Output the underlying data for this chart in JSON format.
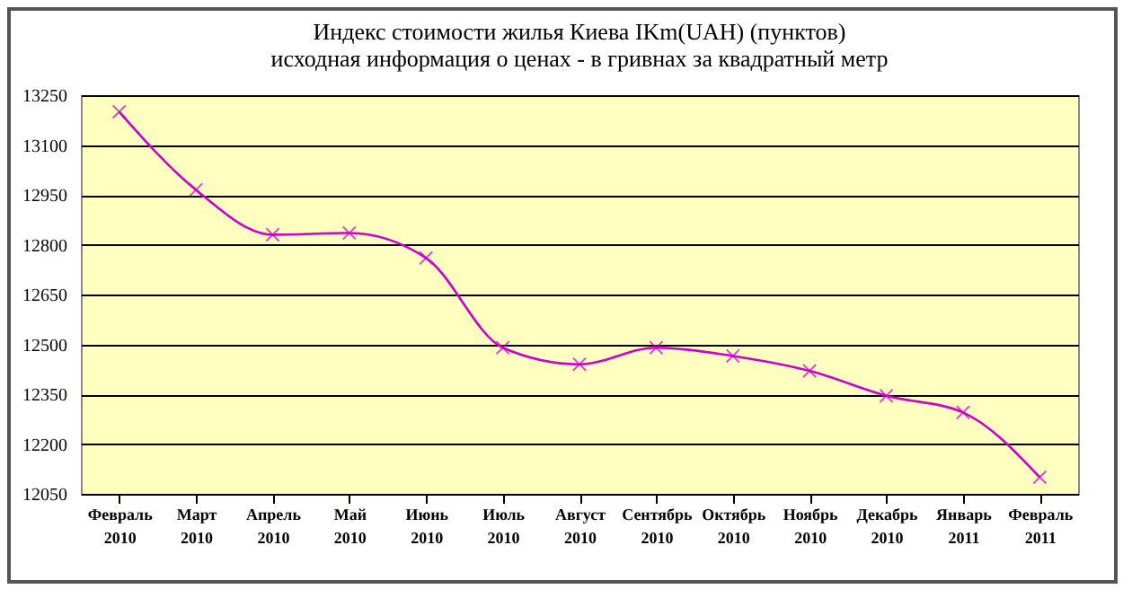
{
  "chart_data": {
    "type": "line",
    "title": "Индекс стоимости жилья Киева IKm(UAH)    (пунктов)",
    "subtitle": "исходная информация о ценах - в гривнах за квадратный метр",
    "categories": [
      "Февраль 2010",
      "Март 2010",
      "Апрель 2010",
      "Май 2010",
      "Июнь 2010",
      "Июль 2010",
      "Август 2010",
      "Сентябрь 2010",
      "Октябрь 2010",
      "Ноябрь 2010",
      "Декабрь 2010",
      "Январь 2011",
      "Февраль 2011"
    ],
    "series": [
      {
        "color": "#cc00cc",
        "values": [
          13200,
          12965,
          12830,
          12835,
          12760,
          12490,
          12440,
          12490,
          12465,
          12420,
          12345,
          12295,
          12100
        ]
      }
    ],
    "ylim": [
      12050,
      13250
    ],
    "yticks": [
      12050,
      12200,
      12350,
      12500,
      12650,
      12800,
      12950,
      13100,
      13250
    ],
    "grid": "y",
    "marker": "cross",
    "legend": false
  }
}
